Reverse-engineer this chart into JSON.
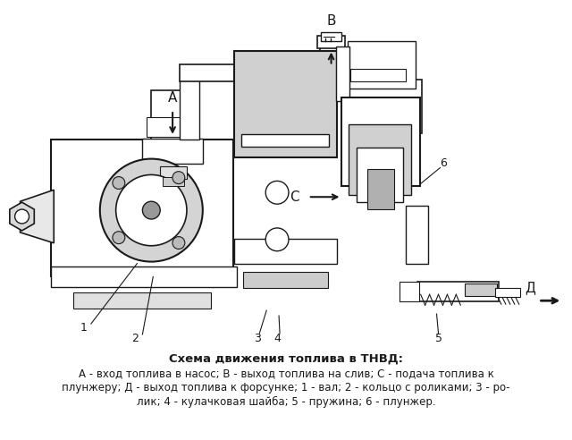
{
  "title": "Схема движения топлива в ТНВД:",
  "caption_line1": "А - вход топлива в насос; В - выход топлива на слив; С - подача топлива к",
  "caption_line2": "плунжеру; Д - выход топлива к форсунке; 1 - вал; 2 - кольцо с роликами; 3 - ро-",
  "caption_line3": "лик; 4 - кулачковая шайба; 5 - пружина; 6 - плунжер.",
  "bg_color": "#ffffff",
  "line_color": "#1a1a1a",
  "gray_fill": "#c8c8c8",
  "dark_gray": "#888888",
  "label_A": "А",
  "label_B": "В",
  "label_C": "С",
  "label_D": "Д",
  "label_1": "1",
  "label_2": "2",
  "label_3": "3",
  "label_4": "4",
  "label_5": "5",
  "label_6": "6"
}
